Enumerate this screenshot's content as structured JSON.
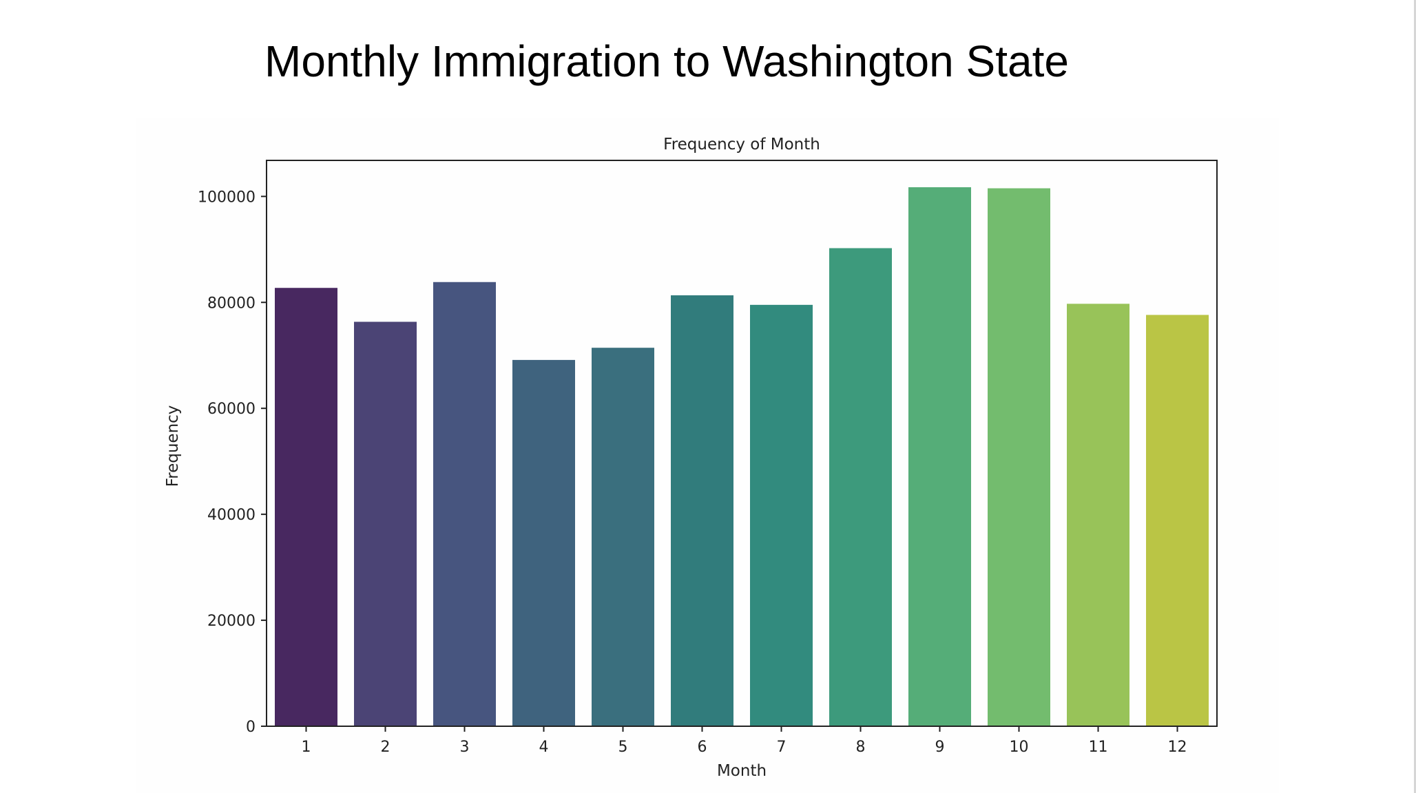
{
  "slide": {
    "title": "Monthly Immigration to Washington State"
  },
  "chart_data": {
    "type": "bar",
    "title": "Frequency of Month",
    "xlabel": "Month",
    "ylabel": "Frequency",
    "categories": [
      "1",
      "2",
      "3",
      "4",
      "5",
      "6",
      "7",
      "8",
      "9",
      "10",
      "11",
      "12"
    ],
    "values": [
      82800,
      76400,
      83900,
      69200,
      71500,
      81400,
      79600,
      90300,
      101800,
      101600,
      79800,
      77700
    ],
    "colors": [
      "#482860",
      "#4b4475",
      "#47557f",
      "#3f637e",
      "#3a6f7e",
      "#317c7c",
      "#328b7e",
      "#3d9a7c",
      "#55ad78",
      "#73bc6e",
      "#98c359",
      "#bac545"
    ],
    "yticks": [
      "0",
      "20000",
      "40000",
      "60000",
      "80000",
      "100000"
    ],
    "ylim": [
      0,
      106800
    ],
    "grid": false,
    "legend": "none"
  }
}
